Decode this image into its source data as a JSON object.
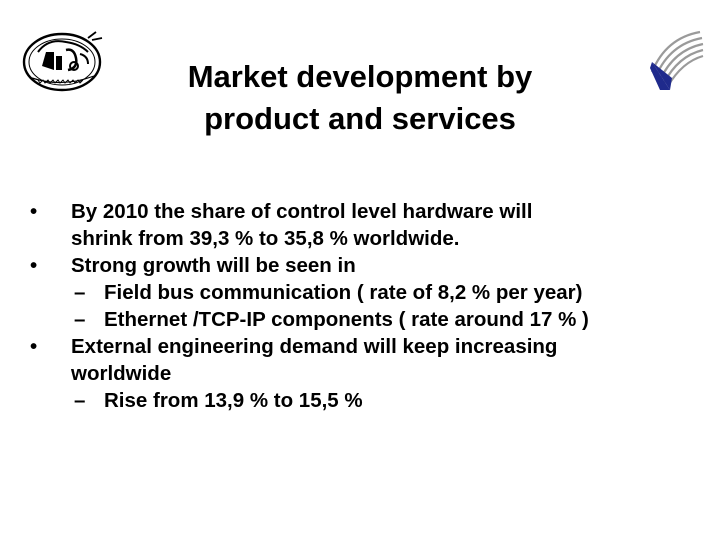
{
  "slide": {
    "title_line1": "Market development by",
    "title_line2": "product and services",
    "bullets": [
      {
        "text_line1": "By 2010 the share of control level hardware will",
        "text_line2": "shrink from 39,3 % to 35,8 % worldwide."
      },
      {
        "text": "Strong growth will be seen in",
        "subitems": [
          "Field bus communication ( rate of 8,2 % per year)",
          "Ethernet /TCP-IP components ( rate around 17 % )"
        ]
      },
      {
        "text_line1": "External engineering demand will keep increasing",
        "text_line2": "worldwide",
        "subitems": [
          "Rise from 13,9 % to 15,5 %"
        ]
      }
    ],
    "bullet_symbol": "•",
    "dash_symbol": "–"
  },
  "logos": {
    "left": "university-seal-logo",
    "right": "swoosh-logo"
  },
  "colors": {
    "text": "#000000",
    "background": "#ffffff",
    "logo_navy": "#1f2a8c",
    "logo_gray": "#9a9a9a"
  }
}
